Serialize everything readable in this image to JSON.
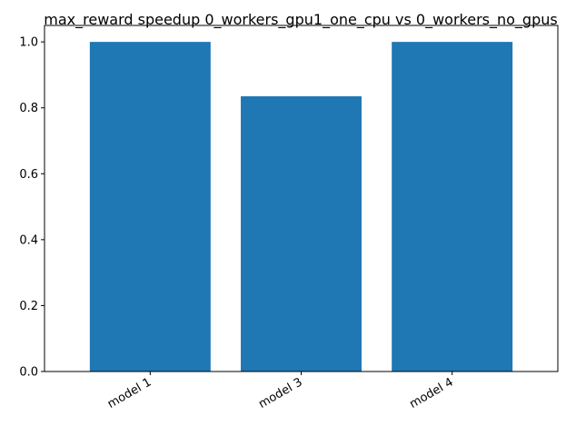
{
  "chart_data": {
    "type": "bar",
    "title": "max_reward speedup 0_workers_gpu1_one_cpu vs 0_workers_no_gpus",
    "xlabel": "",
    "ylabel": "",
    "categories": [
      "model 1",
      "model 3",
      "model 4"
    ],
    "values": [
      1.0,
      0.835,
      1.0
    ],
    "ylim": [
      0,
      1.05
    ],
    "yticks": [
      "0.0",
      "0.2",
      "0.4",
      "0.6",
      "0.8",
      "1.0"
    ],
    "grid": false,
    "bar_color": "#1f77b4"
  }
}
